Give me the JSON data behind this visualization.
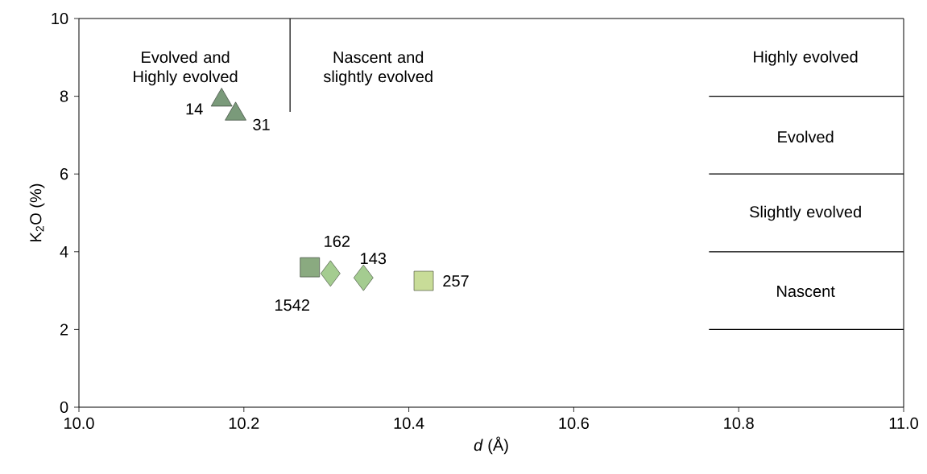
{
  "chart_data": {
    "type": "scatter",
    "xlabel": "*d* (Å)",
    "ylabel": "K$_{2}$O (%)",
    "xlim": [
      10.0,
      11.0
    ],
    "ylim": [
      0,
      10
    ],
    "xticks": [
      {
        "value": 10.0,
        "label": "10.0"
      },
      {
        "value": 10.2,
        "label": "10.2"
      },
      {
        "value": 10.4,
        "label": "10.4"
      },
      {
        "value": 10.6,
        "label": "10.6"
      },
      {
        "value": 10.8,
        "label": "10.8"
      },
      {
        "value": 11.0,
        "label": "11.0"
      }
    ],
    "yticks": [
      0,
      2,
      4,
      6,
      8,
      10
    ],
    "grid": false,
    "series": [
      {
        "marker": "triangle",
        "color": "#7a9a7a",
        "x": [
          10.173
        ],
        "values": [
          7.9
        ],
        "name": "14"
      },
      {
        "marker": "triangle",
        "color": "#7a9a7a",
        "x": [
          10.19
        ],
        "values": [
          7.54
        ],
        "name": "31"
      },
      {
        "marker": "square",
        "color": "#8aaa80",
        "x": [
          10.28
        ],
        "values": [
          3.6
        ],
        "name": "1542"
      },
      {
        "marker": "diamond",
        "color": "#a4cc90",
        "x": [
          10.305
        ],
        "values": [
          3.44
        ],
        "name": "162"
      },
      {
        "marker": "diamond",
        "color": "#a4cc90",
        "x": [
          10.345
        ],
        "values": [
          3.33
        ],
        "name": "143"
      },
      {
        "marker": "square",
        "color": "#c8dc98",
        "x": [
          10.418
        ],
        "values": [
          3.25
        ],
        "name": "257"
      },
      {
        "type": "line",
        "marker": "none",
        "line_style": "solid",
        "color": "#000000",
        "x": [
          10.256,
          10.256
        ],
        "values": [
          7.6,
          10
        ]
      },
      {
        "type": "line",
        "marker": "none",
        "line_style": "solid",
        "color": "#000000",
        "x": [
          10.764,
          11.0
        ],
        "values": [
          8,
          8
        ]
      },
      {
        "type": "line",
        "marker": "none",
        "line_style": "solid",
        "color": "#000000",
        "x": [
          10.764,
          11.0
        ],
        "values": [
          6,
          6
        ]
      },
      {
        "type": "line",
        "marker": "none",
        "line_style": "solid",
        "color": "#000000",
        "x": [
          10.764,
          11.0
        ],
        "values": [
          4,
          4
        ]
      },
      {
        "type": "line",
        "marker": "none",
        "line_style": "solid",
        "color": "#000000",
        "x": [
          10.764,
          11.0
        ],
        "values": [
          2,
          2
        ]
      }
    ],
    "annotations": [
      "Evolved and Highly evolved",
      "Nascent and slightly evolved",
      "Highly evolved",
      "Evolved",
      "Slightly evolved",
      "Nascent"
    ]
  }
}
